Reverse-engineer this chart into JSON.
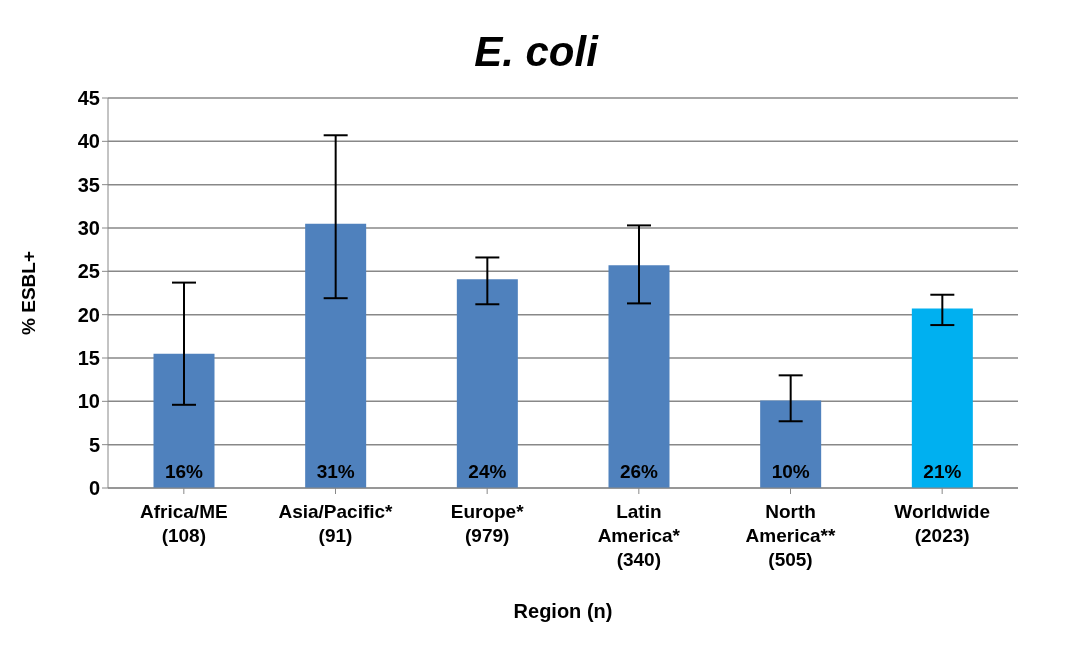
{
  "chart_data": {
    "type": "bar",
    "title": "E. coli",
    "xlabel": "Region (n)",
    "ylabel": "% ESBL+",
    "categories": [
      "Africa/ME\n(108)",
      "Asia/Pacific*\n(91)",
      "Europe*\n(979)",
      "Latin\nAmerica*\n(340)",
      "North\nAmerica**\n(505)",
      "Worldwide\n(2023)"
    ],
    "values": [
      15.5,
      30.5,
      24.1,
      25.7,
      10.1,
      20.7
    ],
    "colors": [
      "#4f81bd",
      "#4f81bd",
      "#4f81bd",
      "#4f81bd",
      "#4f81bd",
      "#00b0f0"
    ],
    "errors": [
      [
        9.6,
        23.7
      ],
      [
        21.9,
        40.7
      ],
      [
        21.2,
        26.6
      ],
      [
        21.3,
        30.3
      ],
      [
        7.7,
        13.0
      ],
      [
        18.8,
        22.3
      ]
    ],
    "value_labels": [
      "16%",
      "31%",
      "24%",
      "26%",
      "10%",
      "21%"
    ],
    "ylim": [
      0,
      45
    ],
    "yticks": [
      0,
      5,
      10,
      15,
      20,
      25,
      30,
      35,
      40,
      45
    ],
    "grid": "y"
  }
}
